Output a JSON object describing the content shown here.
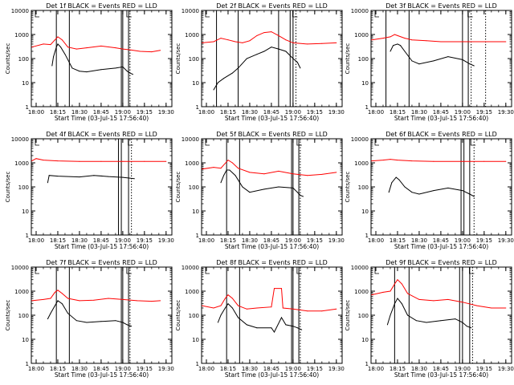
{
  "figure": {
    "xlabel_prefix": "Start Time (03-Jul-15 17:56:40)"
  },
  "chart_data": [
    {
      "type": "line",
      "title": "Det 1f  BLACK = Events  RED = LLD",
      "xlabel": "Start Time (03-Jul-15 17:56:40)",
      "ylabel": "Counts/sec",
      "ylog": true,
      "ylim": [
        1,
        10000
      ],
      "yticks": [
        "1",
        "10",
        "100",
        "1000",
        "10000"
      ],
      "xticks": [
        "18:00",
        "18:15",
        "18:30",
        "18:45",
        "19:00",
        "19:15",
        "19:30"
      ],
      "xlim": [
        "17:56:40",
        "19:34"
      ],
      "vlines_solid": [
        "18:14",
        "18:23",
        "18:59",
        "19:00",
        "19:04"
      ],
      "vlines_dotted": [
        "19:05"
      ],
      "series": [
        {
          "color": "#ff0000",
          "x": [
            "17:57",
            "18:05",
            "18:10",
            "18:13",
            "18:15",
            "18:18",
            "18:22",
            "18:28",
            "18:35",
            "18:45",
            "18:55",
            "19:00",
            "19:05",
            "19:12",
            "19:20",
            "19:26"
          ],
          "values": [
            300,
            400,
            380,
            600,
            800,
            600,
            300,
            250,
            280,
            330,
            280,
            250,
            230,
            200,
            190,
            220
          ]
        },
        {
          "color": "#000000",
          "x": [
            "18:11",
            "18:12",
            "18:14",
            "18:15",
            "18:17",
            "18:20",
            "18:25",
            "18:30",
            "18:35",
            "18:45",
            "18:55",
            "19:00",
            "19:03",
            "19:05",
            "19:07"
          ],
          "values": [
            50,
            120,
            300,
            400,
            300,
            150,
            40,
            30,
            28,
            35,
            40,
            45,
            30,
            25,
            22
          ]
        }
      ]
    },
    {
      "type": "line",
      "title": "Det 2f  BLACK = Events  RED = LLD",
      "xlabel": "Start Time (03-Jul-15 17:56:40)",
      "ylabel": "Counts/sec",
      "ylog": true,
      "ylim": [
        1,
        10000
      ],
      "yticks": [
        "1",
        "10",
        "100",
        "1000",
        "10000"
      ],
      "xticks": [
        "18:00",
        "18:15",
        "18:30",
        "18:45",
        "19:00",
        "19:15",
        "19:30"
      ],
      "xlim": [
        "17:56:40",
        "19:34"
      ],
      "vlines_solid": [
        "18:07",
        "18:22",
        "18:50",
        "18:58",
        "19:00"
      ],
      "vlines_dotted": [
        "19:02"
      ],
      "series": [
        {
          "color": "#ff0000",
          "x": [
            "17:57",
            "18:05",
            "18:10",
            "18:15",
            "18:20",
            "18:25",
            "18:30",
            "18:35",
            "18:40",
            "18:45",
            "18:50",
            "18:55",
            "19:00",
            "19:10",
            "19:20",
            "19:30"
          ],
          "values": [
            450,
            500,
            700,
            600,
            500,
            450,
            550,
            900,
            1200,
            1300,
            900,
            600,
            450,
            400,
            420,
            450
          ]
        },
        {
          "color": "#000000",
          "x": [
            "18:05",
            "18:08",
            "18:12",
            "18:18",
            "18:22",
            "18:28",
            "18:35",
            "18:40",
            "18:45",
            "18:50",
            "18:55",
            "19:00",
            "19:03",
            "19:05"
          ],
          "values": [
            5,
            10,
            15,
            25,
            40,
            100,
            150,
            200,
            300,
            250,
            200,
            100,
            70,
            40
          ]
        }
      ]
    },
    {
      "type": "line",
      "title": "Det 3f  BLACK = Events  RED = LLD",
      "xlabel": "Start Time (03-Jul-15 17:56:40)",
      "ylabel": "Counts/sec",
      "ylog": true,
      "ylim": [
        1,
        10000
      ],
      "yticks": [
        "1",
        "10",
        "100",
        "1000",
        "10000"
      ],
      "xticks": [
        "18:00",
        "18:15",
        "18:30",
        "18:45",
        "19:00",
        "19:15",
        "19:30"
      ],
      "xlim": [
        "17:56:40",
        "19:34"
      ],
      "vlines_solid": [
        "18:07",
        "18:23",
        "19:00",
        "19:04"
      ],
      "vlines_dotted": [
        "19:06",
        "19:16"
      ],
      "series": [
        {
          "color": "#ff0000",
          "x": [
            "17:57",
            "18:05",
            "18:10",
            "18:13",
            "18:15",
            "18:20",
            "18:25",
            "18:35",
            "18:45",
            "19:00",
            "19:15",
            "19:30"
          ],
          "values": [
            600,
            700,
            800,
            1000,
            900,
            700,
            600,
            550,
            500,
            500,
            500,
            500
          ]
        },
        {
          "color": "#000000",
          "x": [
            "18:10",
            "18:12",
            "18:15",
            "18:17",
            "18:20",
            "18:25",
            "18:30",
            "18:40",
            "18:50",
            "19:00",
            "19:05",
            "19:08"
          ],
          "values": [
            200,
            350,
            400,
            350,
            200,
            80,
            60,
            80,
            120,
            90,
            60,
            50
          ]
        }
      ]
    },
    {
      "type": "line",
      "title": "Det 4f  BLACK = Events  RED = LLD",
      "xlabel": "Start Time (03-Jul-15 17:56:40)",
      "ylabel": "Counts/sec",
      "ylog": true,
      "ylim": [
        1,
        10000
      ],
      "yticks": [
        "1",
        "10",
        "100",
        "1000",
        "10000"
      ],
      "xticks": [
        "18:00",
        "18:15",
        "18:30",
        "18:45",
        "19:00",
        "19:15",
        "19:30"
      ],
      "xlim": [
        "17:56:40",
        "19:34"
      ],
      "vlines_solid": [
        "18:57",
        "18:59",
        "19:04"
      ],
      "vlines_dotted": [
        "19:06"
      ],
      "series": [
        {
          "color": "#ff0000",
          "x": [
            "17:57",
            "18:00",
            "18:05",
            "18:15",
            "18:30",
            "18:45",
            "19:00",
            "19:15",
            "19:30"
          ],
          "values": [
            1200,
            1500,
            1300,
            1200,
            1150,
            1150,
            1150,
            1150,
            1150
          ]
        },
        {
          "color": "#000000",
          "x": [
            "18:08",
            "18:09",
            "18:15",
            "18:30",
            "18:40",
            "18:50",
            "19:00",
            "19:08"
          ],
          "values": [
            150,
            300,
            280,
            260,
            300,
            270,
            250,
            220
          ]
        }
      ]
    },
    {
      "type": "line",
      "title": "Det 5f  BLACK = Events  RED = LLD",
      "xlabel": "Start Time (03-Jul-15 17:56:40)",
      "ylabel": "Counts/sec",
      "ylog": true,
      "ylim": [
        1,
        10000
      ],
      "yticks": [
        "1",
        "10",
        "100",
        "1000",
        "10000"
      ],
      "xticks": [
        "18:00",
        "18:15",
        "18:30",
        "18:45",
        "19:00",
        "19:15",
        "19:30"
      ],
      "xlim": [
        "17:56:40",
        "19:34"
      ],
      "vlines_solid": [
        "18:14",
        "18:23",
        "18:59",
        "19:00",
        "19:04"
      ],
      "vlines_dotted": [
        "19:05"
      ],
      "series": [
        {
          "color": "#ff0000",
          "x": [
            "17:57",
            "18:05",
            "18:10",
            "18:15",
            "18:18",
            "18:22",
            "18:30",
            "18:40",
            "18:50",
            "19:00",
            "19:10",
            "19:20",
            "19:30"
          ],
          "values": [
            550,
            650,
            600,
            1300,
            1000,
            600,
            400,
            350,
            450,
            350,
            300,
            330,
            400
          ]
        },
        {
          "color": "#000000",
          "x": [
            "18:10",
            "18:12",
            "18:14",
            "18:16",
            "18:20",
            "18:25",
            "18:30",
            "18:40",
            "18:50",
            "19:00",
            "19:03",
            "19:05",
            "19:07"
          ],
          "values": [
            150,
            300,
            500,
            500,
            300,
            100,
            60,
            80,
            100,
            90,
            60,
            45,
            40
          ]
        }
      ]
    },
    {
      "type": "line",
      "title": "Det 6f  BLACK = Events  RED = LLD",
      "xlabel": "Start Time (03-Jul-15 17:56:40)",
      "ylabel": "Counts/sec",
      "ylog": true,
      "ylim": [
        1,
        10000
      ],
      "yticks": [
        "1",
        "10",
        "100",
        "1000",
        "10000"
      ],
      "xticks": [
        "18:00",
        "18:15",
        "18:30",
        "18:45",
        "19:00",
        "19:15",
        "19:30"
      ],
      "xlim": [
        "17:56:40",
        "19:34"
      ],
      "vlines_solid": [
        "18:59",
        "19:01",
        "19:05"
      ],
      "vlines_dotted": [
        "19:08"
      ],
      "series": [
        {
          "color": "#ff0000",
          "x": [
            "17:57",
            "18:05",
            "18:10",
            "18:15",
            "18:25",
            "18:40",
            "19:00",
            "19:15",
            "19:30"
          ],
          "values": [
            1200,
            1300,
            1400,
            1300,
            1200,
            1150,
            1150,
            1150,
            1150
          ]
        },
        {
          "color": "#000000",
          "x": [
            "18:09",
            "18:11",
            "18:14",
            "18:16",
            "18:20",
            "18:25",
            "18:30",
            "18:40",
            "18:50",
            "19:00",
            "19:05",
            "19:08"
          ],
          "values": [
            60,
            150,
            250,
            200,
            100,
            60,
            50,
            70,
            90,
            70,
            50,
            40
          ]
        }
      ]
    },
    {
      "type": "line",
      "title": "Det 7f  BLACK = Events  RED = LLD",
      "xlabel": "Start Time (03-Jul-15 17:56:40)",
      "ylabel": "Counts/sec",
      "ylog": true,
      "ylim": [
        1,
        10000
      ],
      "yticks": [
        "1",
        "10",
        "100",
        "1000",
        "10000"
      ],
      "xticks": [
        "18:00",
        "18:15",
        "18:30",
        "18:45",
        "19:00",
        "19:15",
        "19:30"
      ],
      "xlim": [
        "17:56:40",
        "19:34"
      ],
      "vlines_solid": [
        "18:14",
        "18:23",
        "18:59",
        "19:00",
        "19:04"
      ],
      "vlines_dotted": [
        "19:05"
      ],
      "series": [
        {
          "color": "#ff0000",
          "x": [
            "17:57",
            "18:05",
            "18:10",
            "18:13",
            "18:15",
            "18:18",
            "18:22",
            "18:30",
            "18:40",
            "18:50",
            "19:00",
            "19:10",
            "19:20",
            "19:26"
          ],
          "values": [
            400,
            450,
            500,
            900,
            1100,
            800,
            500,
            400,
            420,
            500,
            450,
            400,
            380,
            400
          ]
        },
        {
          "color": "#000000",
          "x": [
            "18:08",
            "18:10",
            "18:13",
            "18:15",
            "18:18",
            "18:22",
            "18:28",
            "18:35",
            "18:45",
            "18:55",
            "19:00",
            "19:03",
            "19:06"
          ],
          "values": [
            70,
            120,
            250,
            400,
            300,
            120,
            60,
            50,
            55,
            60,
            50,
            40,
            35
          ]
        }
      ]
    },
    {
      "type": "line",
      "title": "Det 8f  BLACK = Events  RED = LLD",
      "xlabel": "Start Time (03-Jul-15 17:56:40)",
      "ylabel": "Counts/sec",
      "ylog": true,
      "ylim": [
        1,
        10000
      ],
      "yticks": [
        "1",
        "10",
        "100",
        "1000",
        "10000"
      ],
      "xticks": [
        "18:00",
        "18:15",
        "18:30",
        "18:45",
        "19:00",
        "19:15",
        "19:30"
      ],
      "xlim": [
        "17:56:40",
        "19:34"
      ],
      "vlines_solid": [
        "18:14",
        "18:23",
        "18:59",
        "19:00",
        "19:04"
      ],
      "vlines_dotted": [
        "19:05"
      ],
      "series": [
        {
          "color": "#ff0000",
          "x": [
            "17:57",
            "18:05",
            "18:10",
            "18:13",
            "18:15",
            "18:18",
            "18:22",
            "18:28",
            "18:35",
            "18:45",
            "18:47",
            "18:52",
            "18:53",
            "19:00",
            "19:10",
            "19:20",
            "19:30"
          ],
          "values": [
            250,
            200,
            250,
            500,
            700,
            500,
            250,
            180,
            200,
            220,
            1300,
            1300,
            200,
            180,
            150,
            150,
            180
          ]
        },
        {
          "color": "#000000",
          "x": [
            "18:08",
            "18:10",
            "18:13",
            "18:15",
            "18:18",
            "18:22",
            "18:28",
            "18:35",
            "18:45",
            "18:47",
            "18:52",
            "18:55",
            "19:00",
            "19:03",
            "19:06"
          ],
          "values": [
            50,
            100,
            200,
            300,
            200,
            80,
            40,
            30,
            30,
            20,
            80,
            40,
            35,
            30,
            25
          ]
        }
      ]
    },
    {
      "type": "line",
      "title": "Det 9f  BLACK = Events  RED = LLD",
      "xlabel": "Start Time (03-Jul-15 17:56:40)",
      "ylabel": "Counts/sec",
      "ylog": true,
      "ylim": [
        1,
        10000
      ],
      "yticks": [
        "1",
        "10",
        "100",
        "1000",
        "10000"
      ],
      "xticks": [
        "18:00",
        "18:15",
        "18:30",
        "18:45",
        "19:00",
        "19:15",
        "19:30"
      ],
      "xlim": [
        "17:56:40",
        "19:34"
      ],
      "vlines_solid": [
        "18:13",
        "18:23",
        "18:58",
        "19:00",
        "19:05"
      ],
      "vlines_dotted": [
        "19:07"
      ],
      "series": [
        {
          "color": "#ff0000",
          "x": [
            "17:57",
            "18:05",
            "18:10",
            "18:13",
            "18:15",
            "18:18",
            "18:22",
            "18:30",
            "18:40",
            "18:50",
            "19:00",
            "19:10",
            "19:20",
            "19:30"
          ],
          "values": [
            700,
            900,
            1000,
            2000,
            3000,
            2000,
            800,
            450,
            400,
            450,
            350,
            250,
            200,
            200
          ]
        },
        {
          "color": "#000000",
          "x": [
            "18:08",
            "18:10",
            "18:13",
            "18:15",
            "18:18",
            "18:22",
            "18:28",
            "18:35",
            "18:45",
            "18:55",
            "19:00",
            "19:03",
            "19:06"
          ],
          "values": [
            40,
            100,
            300,
            500,
            300,
            100,
            60,
            50,
            60,
            70,
            50,
            35,
            30
          ]
        }
      ]
    }
  ]
}
